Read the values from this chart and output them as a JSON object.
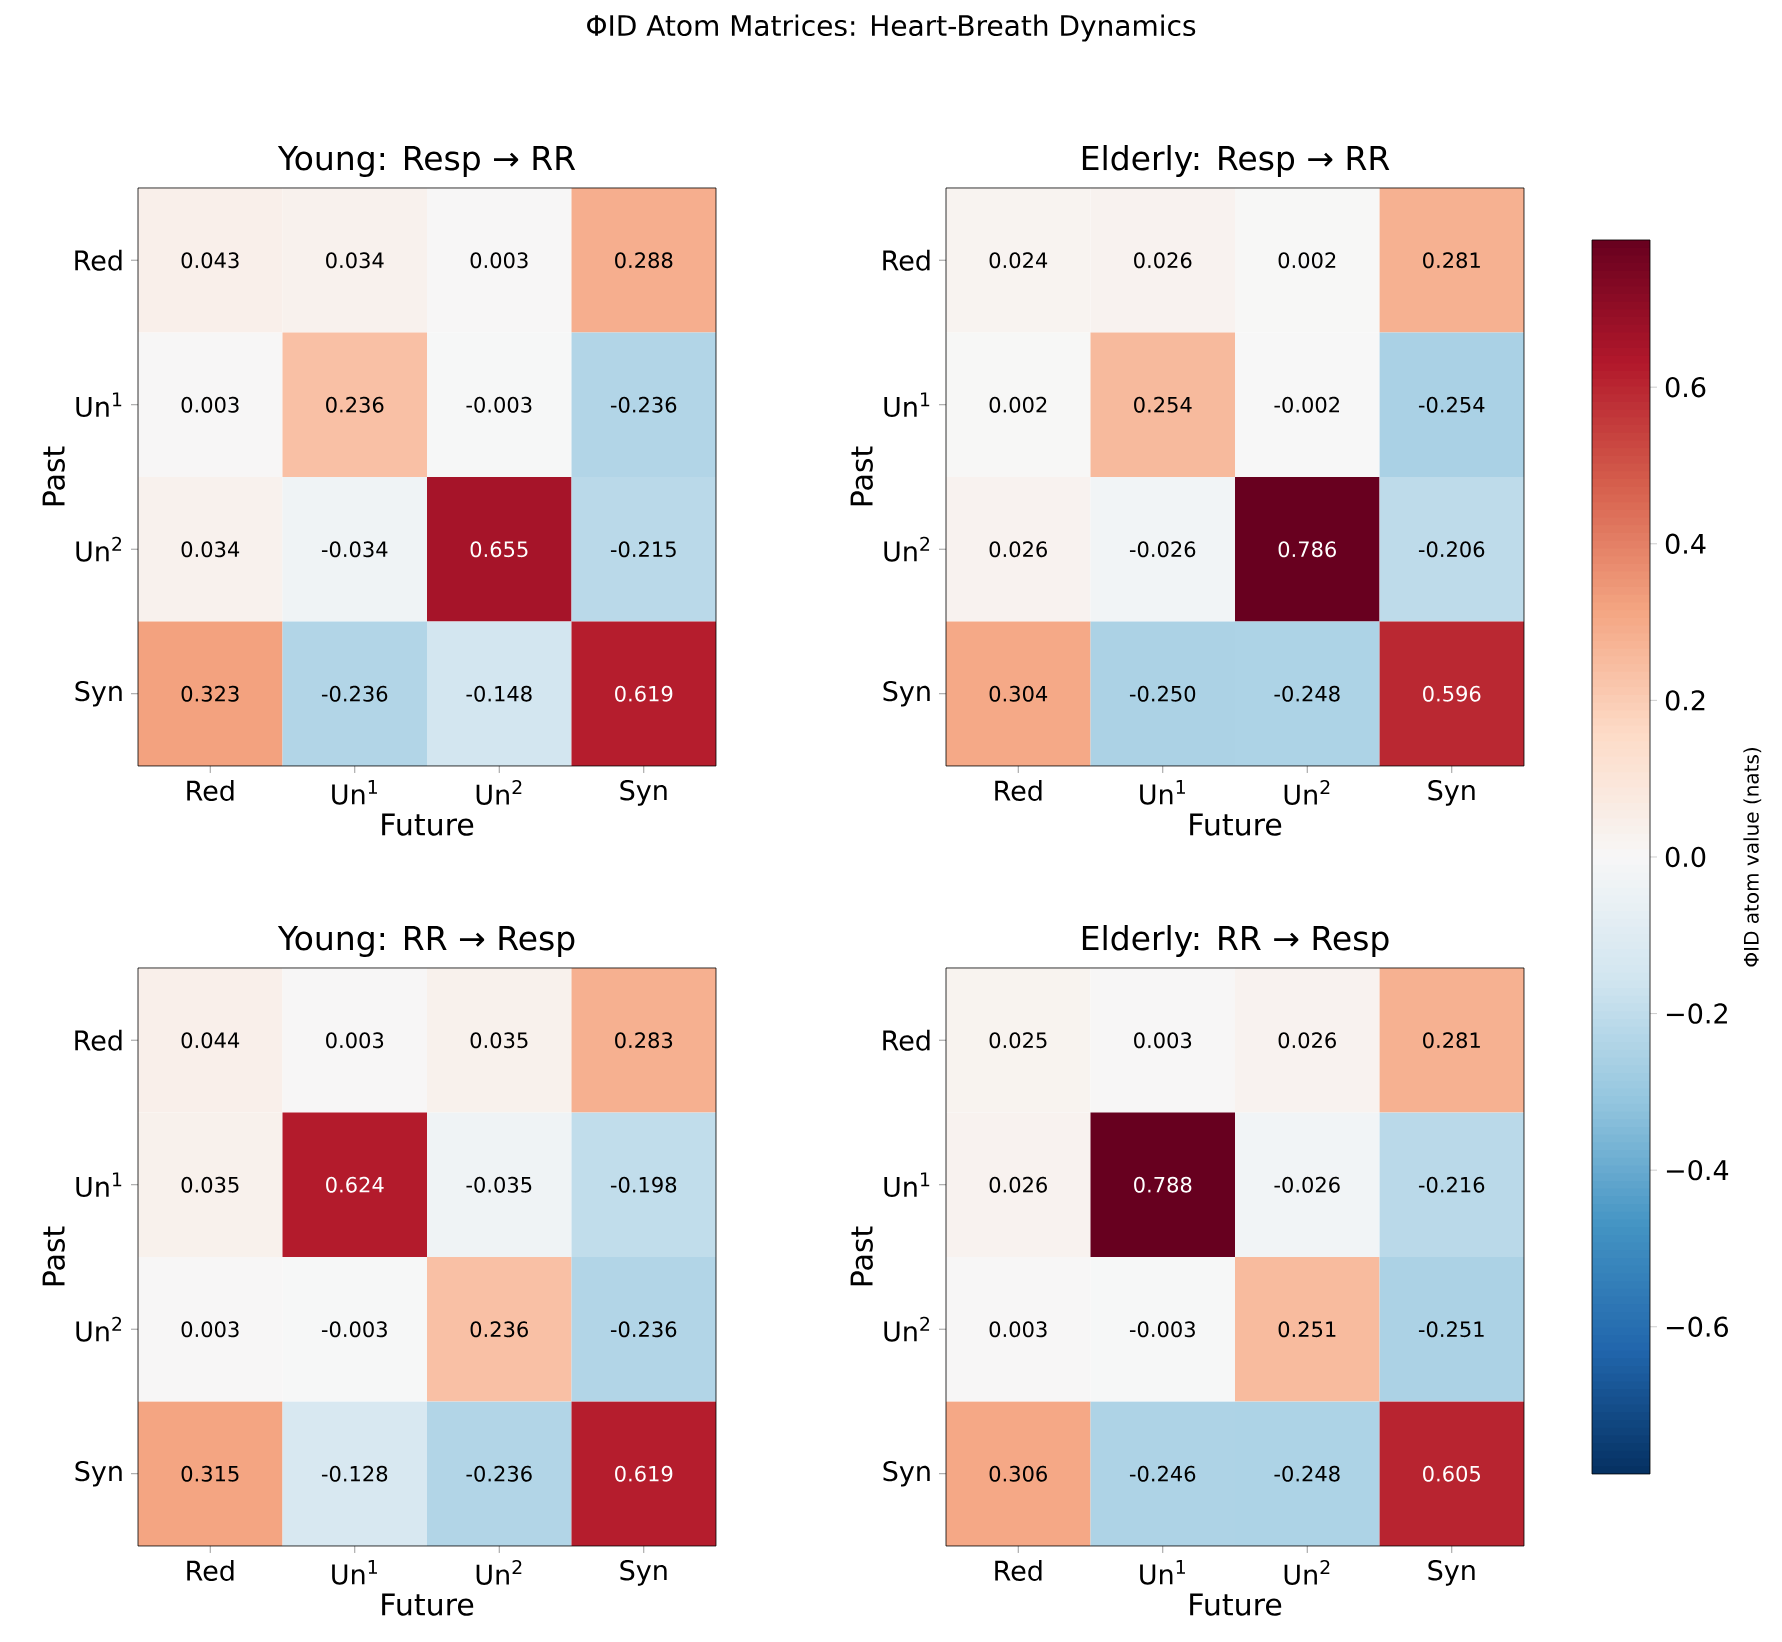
{
  "chart_data": [
    {
      "type": "heatmap",
      "title": "Young: Resp → RR",
      "xlabel": "Future",
      "ylabel": "Past",
      "annotations": [
        "ΦID Atom Matrices: Heart-Breath Dynamics"
      ],
      "categories": [
        "Red",
        "Un$^{1}$",
        "Un$^{2}$",
        "Syn"
      ],
      "y_categories": [
        "Red",
        "Un$^{1}$",
        "Un$^{2}$",
        "Syn"
      ],
      "cells": [
        [
          0.043,
          0.034,
          0.003,
          0.288
        ],
        [
          0.003,
          0.236,
          -0.003,
          -0.236
        ],
        [
          0.034,
          -0.034,
          0.655,
          -0.215
        ],
        [
          0.323,
          -0.236,
          -0.148,
          0.619
        ]
      ],
      "cell_labels": [
        [
          "0.043",
          "0.034",
          "0.003",
          "0.288"
        ],
        [
          "0.003",
          "0.236",
          "-0.003",
          "-0.236"
        ],
        [
          "0.034",
          "-0.034",
          "0.655",
          "-0.215"
        ],
        [
          "0.323",
          "-0.236",
          "-0.148",
          "0.619"
        ]
      ]
    },
    {
      "type": "heatmap",
      "title": "Elderly: Resp → RR",
      "xlabel": "Future",
      "ylabel": "Past",
      "categories": [
        "Red",
        "Un$^{1}$",
        "Un$^{2}$",
        "Syn"
      ],
      "y_categories": [
        "Red",
        "Un$^{1}$",
        "Un$^{2}$",
        "Syn"
      ],
      "cells": [
        [
          0.024,
          0.026,
          0.002,
          0.281
        ],
        [
          0.002,
          0.254,
          -0.002,
          -0.254
        ],
        [
          0.026,
          -0.026,
          0.786,
          -0.206
        ],
        [
          0.304,
          -0.25,
          -0.248,
          0.596
        ]
      ],
      "cell_labels": [
        [
          "0.024",
          "0.026",
          "0.002",
          "0.281"
        ],
        [
          "0.002",
          "0.254",
          "-0.002",
          "-0.254"
        ],
        [
          "0.026",
          "-0.026",
          "0.786",
          "-0.206"
        ],
        [
          "0.304",
          "-0.250",
          "-0.248",
          "0.596"
        ]
      ]
    },
    {
      "type": "heatmap",
      "title": "Young: RR → Resp",
      "xlabel": "Future",
      "ylabel": "Past",
      "categories": [
        "Red",
        "Un$^{1}$",
        "Un$^{2}$",
        "Syn"
      ],
      "y_categories": [
        "Red",
        "Un$^{1}$",
        "Un$^{2}$",
        "Syn"
      ],
      "cells": [
        [
          0.044,
          0.003,
          0.035,
          0.283
        ],
        [
          0.035,
          0.624,
          -0.035,
          -0.198
        ],
        [
          0.003,
          -0.003,
          0.236,
          -0.236
        ],
        [
          0.315,
          -0.128,
          -0.236,
          0.619
        ]
      ],
      "cell_labels": [
        [
          "0.044",
          "0.003",
          "0.035",
          "0.283"
        ],
        [
          "0.035",
          "0.624",
          "-0.035",
          "-0.198"
        ],
        [
          "0.003",
          "-0.003",
          "0.236",
          "-0.236"
        ],
        [
          "0.315",
          "-0.128",
          "-0.236",
          "0.619"
        ]
      ]
    },
    {
      "type": "heatmap",
      "title": "Elderly: RR → Resp",
      "xlabel": "Future",
      "ylabel": "Past",
      "categories": [
        "Red",
        "Un$^{1}$",
        "Un$^{2}$",
        "Syn"
      ],
      "y_categories": [
        "Red",
        "Un$^{1}$",
        "Un$^{2}$",
        "Syn"
      ],
      "cells": [
        [
          0.025,
          0.003,
          0.026,
          0.281
        ],
        [
          0.026,
          0.788,
          -0.026,
          -0.216
        ],
        [
          0.003,
          -0.003,
          0.251,
          -0.251
        ],
        [
          0.306,
          -0.246,
          -0.248,
          0.605
        ]
      ],
      "cell_labels": [
        [
          "0.025",
          "0.003",
          "0.026",
          "0.281"
        ],
        [
          "0.026",
          "0.788",
          "-0.026",
          "-0.216"
        ],
        [
          "0.003",
          "-0.003",
          "0.251",
          "-0.251"
        ],
        [
          "0.306",
          "-0.246",
          "-0.248",
          "0.605"
        ]
      ],
      "clim": [
        -0.788,
        0.788
      ],
      "clabel": "ΦID atom value (nats)",
      "cticks": [
        {
          "value": -0.6,
          "label": "−0.6"
        },
        {
          "value": -0.4,
          "label": "−0.4"
        },
        {
          "value": -0.2,
          "label": "−0.2"
        },
        {
          "value": 0,
          "label": "0.0"
        },
        0.2,
        0.4,
        0.6
      ]
    }
  ]
}
